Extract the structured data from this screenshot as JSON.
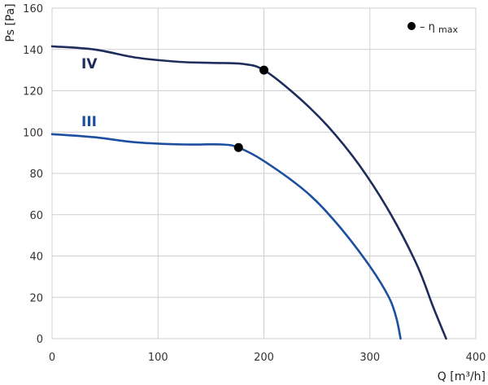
{
  "chart_data": {
    "type": "line",
    "xlabel": "Q [m³/h]",
    "ylabel": "Ps [Pa]",
    "xlim": [
      0,
      400
    ],
    "ylim": [
      0,
      160
    ],
    "x_ticks": [
      "0",
      "100",
      "200",
      "300",
      "400"
    ],
    "y_ticks": [
      "0",
      "20",
      "40",
      "60",
      "80",
      "100",
      "120",
      "140",
      "160"
    ],
    "grid": true,
    "legend": {
      "placement": "top-right",
      "marker": "●",
      "text": "– η",
      "subscript": "max"
    },
    "series": [
      {
        "name": "IV",
        "color": "#1f2d5c",
        "x": [
          0,
          40,
          80,
          120,
          150,
          180,
          200,
          230,
          260,
          290,
          320,
          345,
          360,
          372
        ],
        "y": [
          141.5,
          140,
          136,
          134,
          133.5,
          133,
          130,
          118,
          103,
          84,
          60,
          35,
          15,
          0
        ],
        "eta_max": {
          "x": 200,
          "y": 130
        }
      },
      {
        "name": "III",
        "color": "#1d4fa0",
        "x": [
          0,
          40,
          80,
          125,
          160,
          176,
          200,
          240,
          270,
          300,
          318,
          325,
          329
        ],
        "y": [
          99,
          97.5,
          95,
          94,
          94,
          92.5,
          86,
          71,
          55,
          35,
          20,
          10,
          0
        ],
        "eta_max": {
          "x": 176,
          "y": 92.5
        }
      }
    ]
  }
}
